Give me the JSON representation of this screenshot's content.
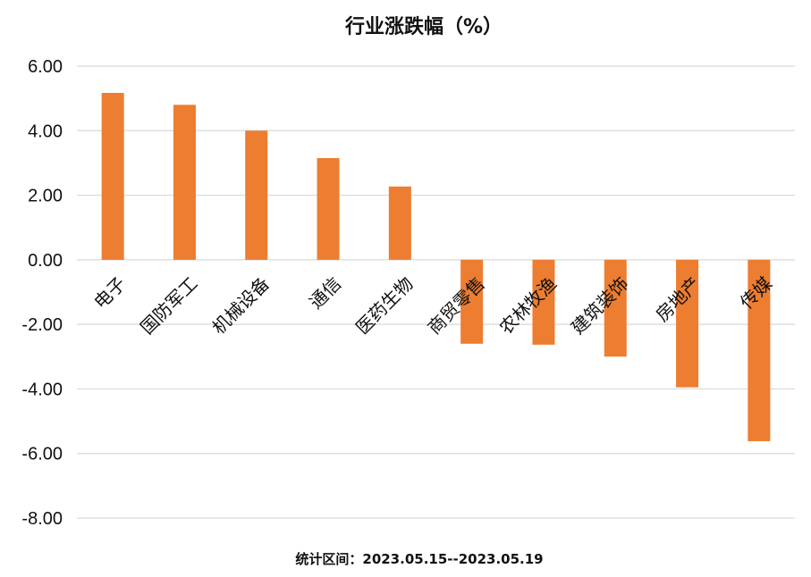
{
  "chart_data": {
    "type": "bar",
    "title": "行业涨跌幅（%）",
    "categories": [
      "电子",
      "国防军工",
      "机械设备",
      "通信",
      "医药生物",
      "商贸零售",
      "农林牧渔",
      "建筑装饰",
      "房地产",
      "传媒"
    ],
    "values": [
      5.17,
      4.8,
      4.0,
      3.15,
      2.27,
      -2.6,
      -2.63,
      -3.0,
      -3.95,
      -5.62
    ],
    "ylim": [
      -8,
      6
    ],
    "yticks": [
      "6.00",
      "4.00",
      "2.00",
      "0.00",
      "-2.00",
      "-4.00",
      "-6.00",
      "-8.00"
    ],
    "grid": true,
    "legend": "none",
    "bar_color": "#ED7D31"
  },
  "footer": "统计区间：2023.05.15--2023.05.19"
}
